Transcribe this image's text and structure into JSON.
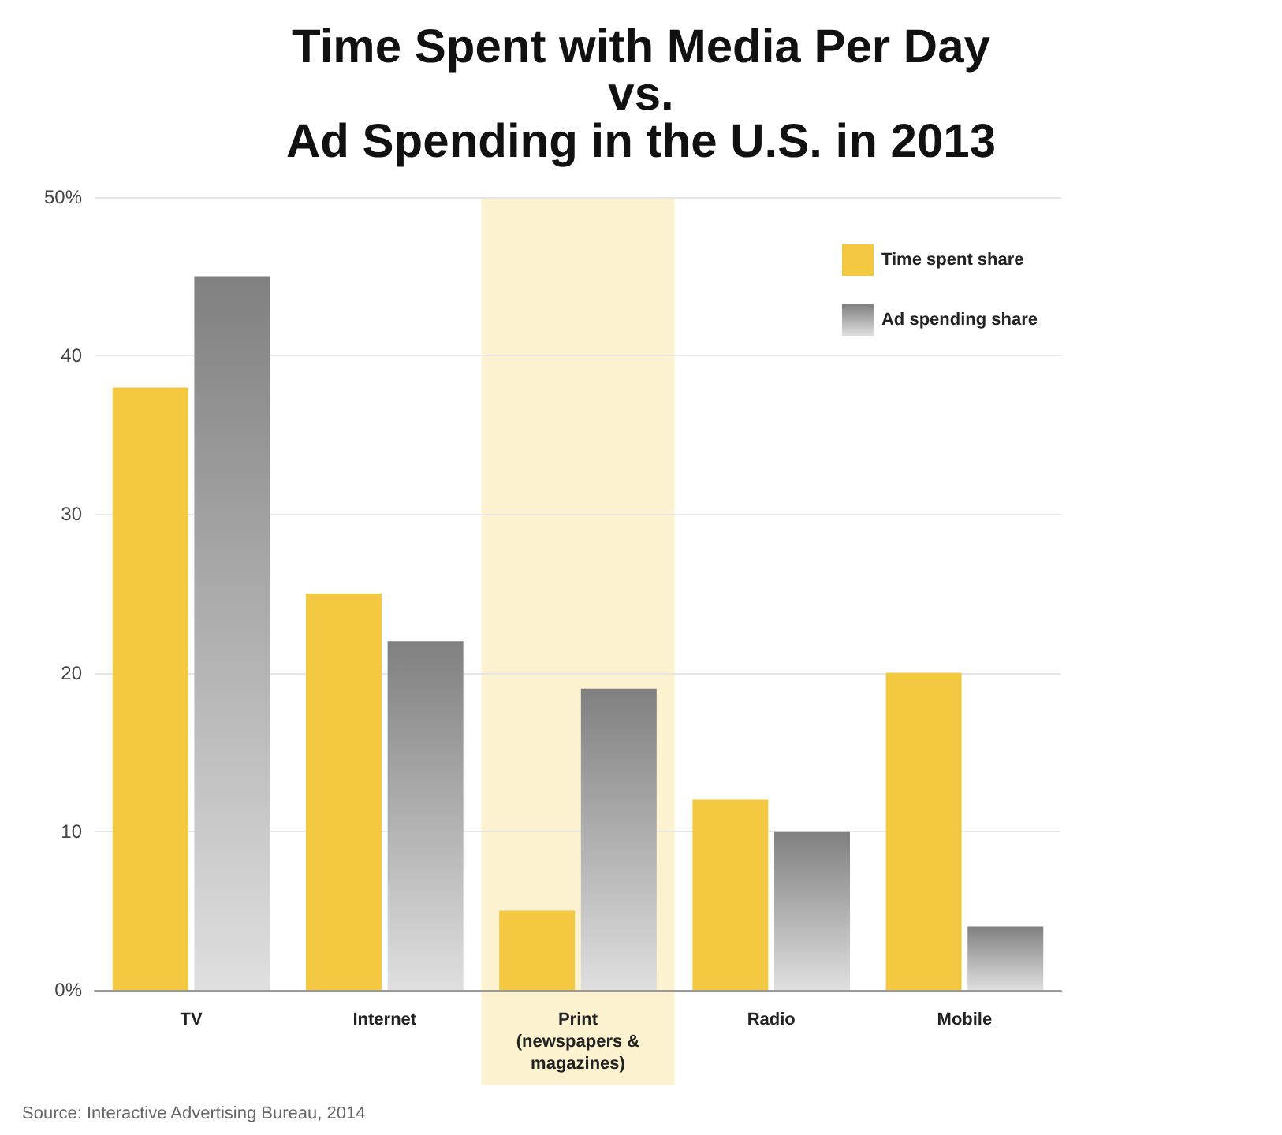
{
  "chart_data": {
    "type": "bar",
    "title": "Time Spent with Media Per Day\nvs.\nAd Spending in the U.S. in 2013",
    "categories": [
      "TV",
      "Internet",
      "Print\n(newspapers &\nmagazines)",
      "Radio",
      "Mobile"
    ],
    "series": [
      {
        "name": "Time spent share",
        "color": "#f5c842",
        "values": [
          38,
          25,
          5,
          12,
          20
        ]
      },
      {
        "name": "Ad spending share",
        "color": "#808080",
        "values": [
          45,
          22,
          19,
          10,
          4
        ]
      }
    ],
    "ylim": [
      0,
      50
    ],
    "yticks": [
      {
        "value": 0,
        "label": "0%"
      },
      10,
      20,
      30,
      40,
      {
        "value": 50,
        "label": "50%"
      }
    ],
    "grid": "y",
    "legend": "top right",
    "bands": [
      {
        "axis": "x",
        "from": "Print\n(newspapers &\nmagazines)",
        "to": "Print\n(newspapers &\nmagazines)",
        "color": "#fbefc4"
      }
    ],
    "annotations": [
      "Source: Interactive Advertising Bureau, 2014"
    ]
  }
}
